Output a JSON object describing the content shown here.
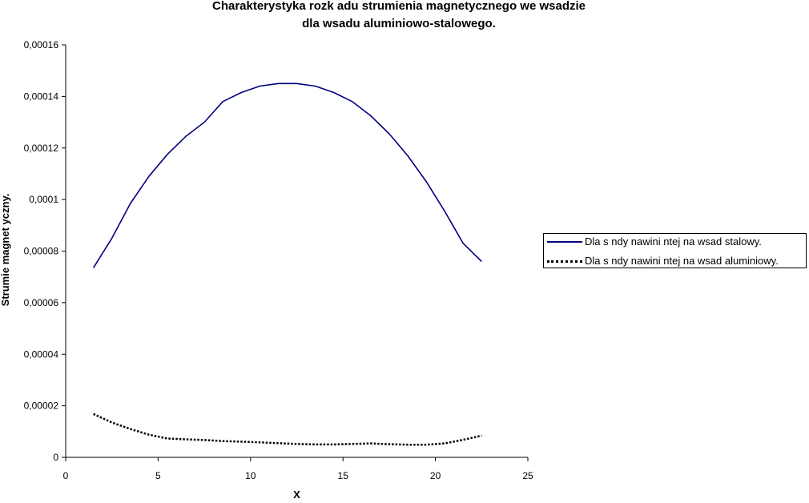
{
  "chart_data": {
    "type": "line",
    "title_line1": "Charakterystyka rozk adu strumienia magnetycznego we wsadzie",
    "title_line2": "dla wsadu aluminiowo-stalowego.",
    "xlabel": "X",
    "ylabel": "Strumie   magnet yczny.",
    "xlim": [
      0,
      25
    ],
    "ylim": [
      0,
      0.00016
    ],
    "x_ticks": [
      0,
      5,
      10,
      15,
      20,
      25
    ],
    "x_tick_labels": [
      "0",
      "5",
      "10",
      "15",
      "20",
      "25"
    ],
    "y_ticks": [
      0,
      2e-05,
      4e-05,
      6e-05,
      8e-05,
      0.0001,
      0.00012,
      0.00014,
      0.00016
    ],
    "y_tick_labels": [
      "0",
      "0,00002",
      "0,00004",
      "0,00006",
      "0,00008",
      "0,0001",
      "0,00012",
      "0,00014",
      "0,00016"
    ],
    "grid": false,
    "legend_position": "right",
    "series": [
      {
        "name": "Dla s  ndy nawini  ntej na wsad stalowy.",
        "color": "#000080",
        "style": "solid",
        "x": [
          1.5,
          2.5,
          3.5,
          4.5,
          5.5,
          6.5,
          7.5,
          8.5,
          9.5,
          10.5,
          11.5,
          12.5,
          13.5,
          14.5,
          15.5,
          16.5,
          17.5,
          18.5,
          19.5,
          20.5,
          21.5,
          22.5
        ],
        "values": [
          7.35e-05,
          8.5e-05,
          9.85e-05,
          0.000109,
          0.0001175,
          0.0001245,
          0.00013,
          0.000138,
          0.0001415,
          0.000144,
          0.000145,
          0.000145,
          0.000144,
          0.0001415,
          0.000138,
          0.0001325,
          0.0001255,
          0.000117,
          0.000107,
          9.55e-05,
          8.3e-05,
          7.6e-05
        ]
      },
      {
        "name": "Dla s  ndy nawini  ntej na wsad aluminiowy.",
        "color": "#000000",
        "style": "dotted",
        "x": [
          1.5,
          2.5,
          3.5,
          4.5,
          5.5,
          6.5,
          7.5,
          8.5,
          9.5,
          10.5,
          11.5,
          12.5,
          13.5,
          14.5,
          15.5,
          16.5,
          17.5,
          18.5,
          19.5,
          20.5,
          21.5,
          22.5
        ],
        "values": [
          1.68e-05,
          1.35e-05,
          1.1e-05,
          8.8e-06,
          7.3e-06,
          7e-06,
          6.7e-06,
          6.3e-06,
          6.1e-06,
          5.8e-06,
          5.5e-06,
          5.2e-06,
          5e-06,
          5e-06,
          5.2e-06,
          5.4e-06,
          5.1e-06,
          4.9e-06,
          4.9e-06,
          5.4e-06,
          6.8e-06,
          8.4e-06
        ]
      }
    ]
  }
}
